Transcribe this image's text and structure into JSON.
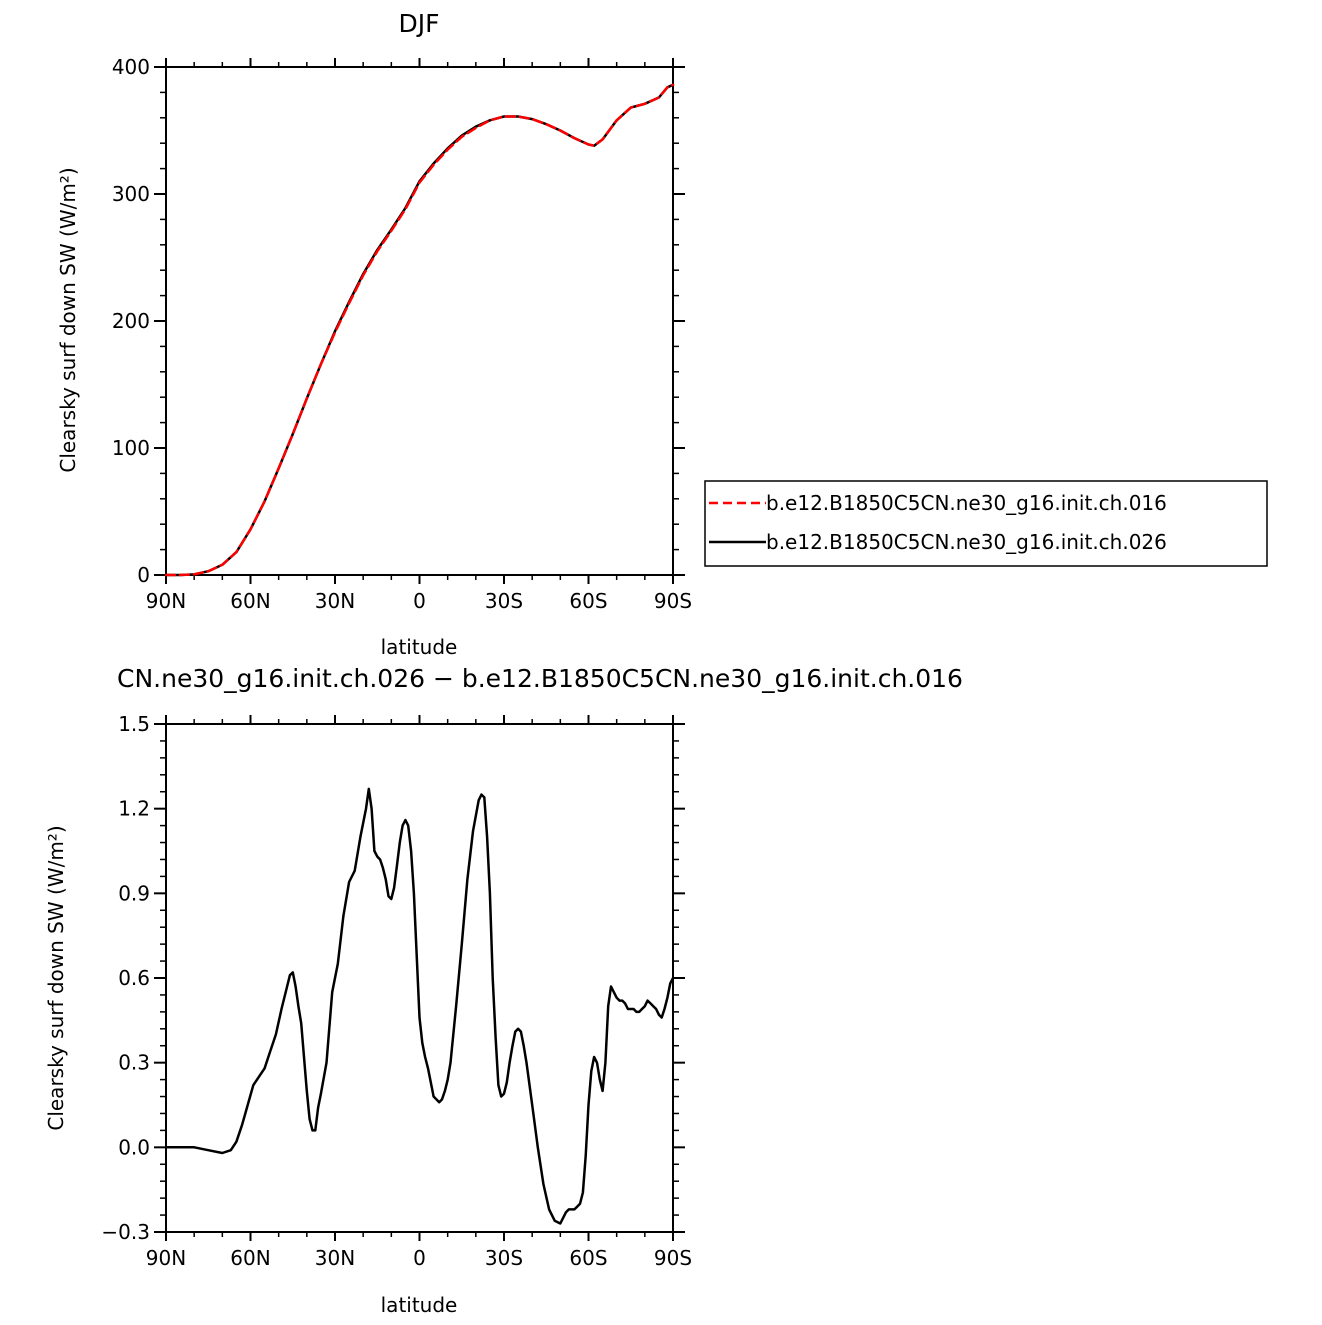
{
  "chart_data": [
    {
      "type": "line",
      "title": "DJF",
      "xlabel": "latitude",
      "ylabel": "Clearsky surf down SW (W/m²)",
      "xlim": [
        90,
        -90
      ],
      "ylim": [
        0,
        400
      ],
      "x_ticks": [
        90,
        60,
        30,
        0,
        -30,
        -60,
        -90
      ],
      "x_tick_labels": [
        "90N",
        "60N",
        "30N",
        "0",
        "30S",
        "60S",
        "90S"
      ],
      "y_ticks": [
        0,
        100,
        200,
        300,
        400
      ],
      "y_tick_labels": [
        "0",
        "100",
        "200",
        "300",
        "400"
      ],
      "legend_position": "right",
      "series": [
        {
          "name": "b.e12.B1850C5CN.ne30_g16.init.ch.016",
          "color": "#ff0000",
          "dash": "dashed",
          "x": [
            90,
            85,
            80,
            75,
            70,
            65,
            60,
            55,
            50,
            45,
            40,
            35,
            30,
            25,
            20,
            15,
            10,
            5,
            0,
            -5,
            -10,
            -15,
            -20,
            -25,
            -30,
            -35,
            -40,
            -45,
            -50,
            -55,
            -60,
            -62,
            -65,
            -70,
            -75,
            -80,
            -85,
            -88,
            -90
          ],
          "values": [
            0,
            0,
            0.5,
            3,
            8,
            18,
            36,
            58,
            84,
            111,
            139,
            166,
            191,
            214,
            236,
            255,
            271,
            288,
            309,
            323,
            335,
            345,
            352,
            358,
            361,
            361,
            359,
            355,
            350,
            344,
            339,
            338,
            343,
            358,
            368,
            371,
            376,
            384,
            386
          ]
        },
        {
          "name": "b.e12.B1850C5CN.ne30_g16.init.ch.026",
          "color": "#000000",
          "dash": "solid",
          "x": [
            90,
            85,
            80,
            75,
            70,
            65,
            60,
            55,
            50,
            45,
            40,
            35,
            30,
            25,
            20,
            15,
            10,
            5,
            0,
            -5,
            -10,
            -15,
            -20,
            -25,
            -30,
            -35,
            -40,
            -45,
            -50,
            -55,
            -60,
            -62,
            -65,
            -70,
            -75,
            -80,
            -85,
            -88,
            -90
          ],
          "values": [
            0,
            0,
            0.5,
            3,
            8,
            18,
            36,
            58,
            84,
            111,
            139,
            166,
            192,
            215,
            237,
            256,
            272,
            289,
            310,
            324,
            336,
            346,
            353,
            358,
            361,
            361,
            359,
            355,
            350,
            344,
            339,
            338,
            343,
            358,
            368,
            371,
            376,
            384,
            386
          ]
        }
      ]
    },
    {
      "type": "line",
      "title": "CN.ne30_g16.init.ch.026 − b.e12.B1850C5CN.ne30_g16.init.ch.016",
      "xlabel": "latitude",
      "ylabel": "Clearsky surf down SW (W/m²)",
      "xlim": [
        90,
        -90
      ],
      "ylim": [
        -0.3,
        1.5
      ],
      "x_ticks": [
        90,
        60,
        30,
        0,
        -30,
        -60,
        -90
      ],
      "x_tick_labels": [
        "90N",
        "60N",
        "30N",
        "0",
        "30S",
        "60S",
        "90S"
      ],
      "y_ticks": [
        -0.3,
        0,
        0.3,
        0.6,
        0.9,
        1.2,
        1.5
      ],
      "y_tick_labels": [
        "−0.3",
        "0.0",
        "0.3",
        "0.6",
        "0.9",
        "1.2",
        "1.5"
      ],
      "series": [
        {
          "color": "#000000",
          "dash": "solid",
          "x": [
            90,
            80,
            75,
            70,
            67,
            65,
            63,
            61,
            59,
            57,
            55,
            53,
            51,
            49,
            47,
            46,
            45,
            44,
            43,
            42,
            40,
            39,
            38,
            37,
            36,
            35,
            33,
            31,
            29,
            27,
            25,
            23,
            21,
            19,
            18,
            17,
            16,
            15,
            14,
            13,
            12,
            11,
            10,
            9,
            8,
            7,
            6,
            5,
            4,
            3,
            2,
            1,
            0,
            -1,
            -2,
            -3,
            -5,
            -7,
            -8,
            -9,
            -10,
            -11,
            -13,
            -15,
            -17,
            -19,
            -21,
            -22,
            -23,
            -24,
            -25,
            -26,
            -27,
            -28,
            -29,
            -30,
            -31,
            -32,
            -33,
            -34,
            -35,
            -36,
            -37,
            -38,
            -40,
            -42,
            -44,
            -46,
            -48,
            -50,
            -51,
            -52,
            -53,
            -54,
            -55,
            -56,
            -57,
            -58,
            -59,
            -60,
            -61,
            -62,
            -63,
            -64,
            -65,
            -66,
            -67,
            -68,
            -69,
            -70,
            -71,
            -72,
            -73,
            -74,
            -75,
            -76,
            -77,
            -78,
            -79,
            -80,
            -81,
            -82,
            -83,
            -84,
            -85,
            -86,
            -87,
            -88,
            -89,
            -90
          ],
          "values": [
            0,
            0,
            -0.01,
            -0.02,
            -0.01,
            0.02,
            0.08,
            0.15,
            0.22,
            0.25,
            0.28,
            0.34,
            0.4,
            0.49,
            0.57,
            0.61,
            0.62,
            0.57,
            0.5,
            0.44,
            0.2,
            0.1,
            0.06,
            0.06,
            0.14,
            0.19,
            0.3,
            0.55,
            0.65,
            0.82,
            0.94,
            0.98,
            1.1,
            1.2,
            1.27,
            1.2,
            1.05,
            1.03,
            1.02,
            0.99,
            0.95,
            0.89,
            0.88,
            0.92,
            1.0,
            1.08,
            1.14,
            1.16,
            1.14,
            1.05,
            0.9,
            0.68,
            0.46,
            0.37,
            0.32,
            0.28,
            0.18,
            0.16,
            0.17,
            0.2,
            0.24,
            0.3,
            0.5,
            0.72,
            0.95,
            1.12,
            1.23,
            1.25,
            1.24,
            1.1,
            0.9,
            0.6,
            0.39,
            0.22,
            0.18,
            0.19,
            0.23,
            0.3,
            0.36,
            0.41,
            0.42,
            0.41,
            0.36,
            0.3,
            0.15,
            0.0,
            -0.13,
            -0.22,
            -0.26,
            -0.27,
            -0.25,
            -0.23,
            -0.22,
            -0.22,
            -0.22,
            -0.21,
            -0.2,
            -0.16,
            -0.03,
            0.15,
            0.27,
            0.32,
            0.3,
            0.24,
            0.2,
            0.3,
            0.5,
            0.57,
            0.55,
            0.53,
            0.52,
            0.52,
            0.51,
            0.49,
            0.49,
            0.49,
            0.48,
            0.48,
            0.49,
            0.5,
            0.52,
            0.51,
            0.5,
            0.49,
            0.47,
            0.46,
            0.49,
            0.53,
            0.58,
            0.6
          ]
        }
      ]
    }
  ]
}
